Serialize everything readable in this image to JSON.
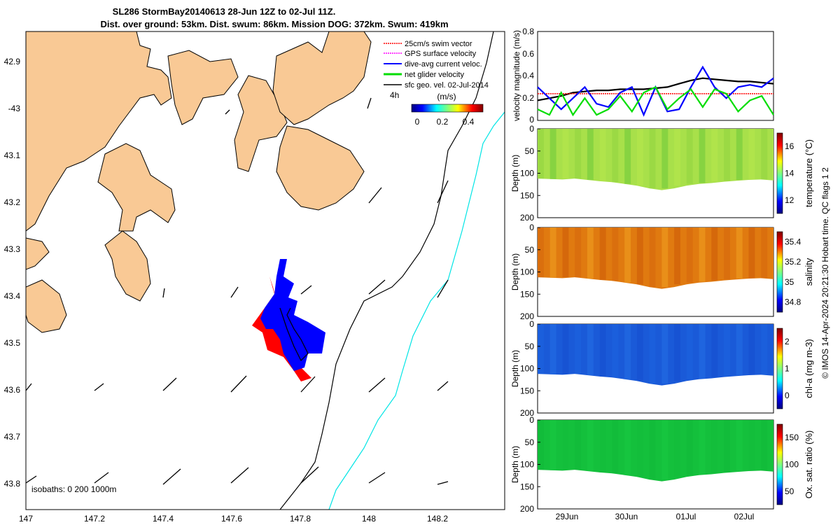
{
  "title_line1": "SL286 StormBay20140613 28-Jun 12Z to 02-Jul 11Z.",
  "title_line2": "Dist. over ground: 53km. Dist. swum: 86km. Mission DOG: 372km. Swum: 419km",
  "credit": "© IMOS 14-Apr-2024 20:21:30 Hobart time. QC flags 1  2",
  "map": {
    "lon_ticks": [
      "147",
      "147.2",
      "147.4",
      "147.6",
      "147.8",
      "148",
      "148.2"
    ],
    "lat_ticks": [
      "42.9",
      "-43",
      "43.1",
      "43.2",
      "43.3",
      "43.4",
      "43.5",
      "43.6",
      "43.7",
      "43.8"
    ],
    "isobaths_label": "isobaths: 0   200  1000m",
    "legend": [
      {
        "label": "25cm/s swim vector",
        "color": "#ff0000"
      },
      {
        "label": "GPS surface velocity",
        "color": "#ff00ff"
      },
      {
        "label": "dive-avg current veloc.",
        "color": "#0000ff"
      },
      {
        "label": "net glider velocity",
        "color": "#00dd00"
      },
      {
        "label": "sfc geo. vel. 02-Jul-2014",
        "color": "#000000"
      }
    ],
    "scale_note": "4h",
    "colorbar_label": "(m/s)",
    "colorbar_ticks": [
      "0",
      "0.2",
      "0.4"
    ],
    "colors": {
      "land": "#f9c995",
      "track_red": "#ff0000",
      "track_blue": "#0000ff",
      "isobath_1000": "#00e5e5"
    }
  },
  "right_panels": {
    "x_ticks": [
      "29Jun",
      "30Jun",
      "01Jul",
      "02Jul"
    ]
  },
  "chart_data": [
    {
      "type": "line",
      "title": "",
      "ylabel": "velocity magnitude (m/s)",
      "ylim": [
        0,
        0.8
      ],
      "yticks": [
        "0",
        "0.2",
        "0.4",
        "0.6",
        "0.8"
      ],
      "x": [
        0,
        0.05,
        0.1,
        0.15,
        0.2,
        0.25,
        0.3,
        0.35,
        0.4,
        0.45,
        0.5,
        0.55,
        0.6,
        0.65,
        0.7,
        0.75,
        0.8,
        0.85,
        0.9,
        0.95,
        1.0
      ],
      "series": [
        {
          "name": "sfc geo. vel.",
          "color": "#000000",
          "values": [
            0.18,
            0.2,
            0.22,
            0.25,
            0.26,
            0.27,
            0.27,
            0.28,
            0.28,
            0.28,
            0.29,
            0.3,
            0.33,
            0.36,
            0.38,
            0.37,
            0.36,
            0.35,
            0.35,
            0.34,
            0.33
          ]
        },
        {
          "name": "swim",
          "color": "#ff0000",
          "values": [
            0.24,
            0.24,
            0.24,
            0.24,
            0.24,
            0.24,
            0.24,
            0.24,
            0.24,
            0.24,
            0.24,
            0.24,
            0.24,
            0.24,
            0.24,
            0.24,
            0.24,
            0.24,
            0.24,
            0.24,
            0.24
          ]
        },
        {
          "name": "dive-avg current",
          "color": "#0000ff",
          "values": [
            0.3,
            0.2,
            0.1,
            0.2,
            0.3,
            0.15,
            0.12,
            0.25,
            0.3,
            0.05,
            0.3,
            0.08,
            0.1,
            0.3,
            0.48,
            0.3,
            0.2,
            0.3,
            0.32,
            0.3,
            0.38
          ]
        },
        {
          "name": "net glider velocity",
          "color": "#00dd00",
          "values": [
            0.1,
            0.05,
            0.25,
            0.05,
            0.2,
            0.05,
            0.1,
            0.22,
            0.08,
            0.25,
            0.3,
            0.1,
            0.2,
            0.28,
            0.12,
            0.28,
            0.24,
            0.08,
            0.18,
            0.22,
            0.05
          ]
        }
      ]
    },
    {
      "type": "heatmap",
      "ylabel": "Depth (m)",
      "ylim": [
        0,
        200
      ],
      "yticks": [
        "0",
        "50",
        "100",
        "150",
        "200"
      ],
      "colorbar_label": "temperature (°C)",
      "colorbar_ticks": [
        "12",
        "14",
        "16"
      ],
      "bottom_depth": [
        112,
        113,
        114,
        112,
        115,
        118,
        120,
        124,
        128,
        134,
        138,
        134,
        128,
        124,
        122,
        119,
        117,
        115,
        114,
        116
      ]
    },
    {
      "type": "heatmap",
      "ylabel": "Depth (m)",
      "ylim": [
        0,
        200
      ],
      "yticks": [
        "0",
        "50",
        "100",
        "150",
        "200"
      ],
      "colorbar_label": "salinity",
      "colorbar_ticks": [
        "34.8",
        "35",
        "35.2",
        "35.4"
      ],
      "bottom_depth": [
        112,
        113,
        114,
        112,
        115,
        118,
        120,
        124,
        128,
        134,
        138,
        134,
        128,
        124,
        122,
        119,
        117,
        115,
        114,
        116
      ]
    },
    {
      "type": "heatmap",
      "ylabel": "Depth (m)",
      "ylim": [
        0,
        200
      ],
      "yticks": [
        "0",
        "50",
        "100",
        "150",
        "200"
      ],
      "colorbar_label": "chl-a (mg m-3)",
      "colorbar_ticks": [
        "0",
        "1",
        "2"
      ],
      "bottom_depth": [
        112,
        113,
        114,
        112,
        115,
        118,
        120,
        124,
        128,
        134,
        138,
        134,
        128,
        124,
        122,
        119,
        117,
        115,
        114,
        116
      ]
    },
    {
      "type": "heatmap",
      "ylabel": "Depth (m)",
      "ylim": [
        0,
        200
      ],
      "yticks": [
        "0",
        "50",
        "100",
        "150",
        "200"
      ],
      "colorbar_label": "Ox. sat. ratio (%)",
      "colorbar_ticks": [
        "50",
        "100",
        "150"
      ],
      "bottom_depth": [
        112,
        113,
        114,
        112,
        115,
        118,
        120,
        124,
        128,
        134,
        138,
        134,
        128,
        124,
        122,
        119,
        117,
        115,
        114,
        116
      ]
    }
  ]
}
